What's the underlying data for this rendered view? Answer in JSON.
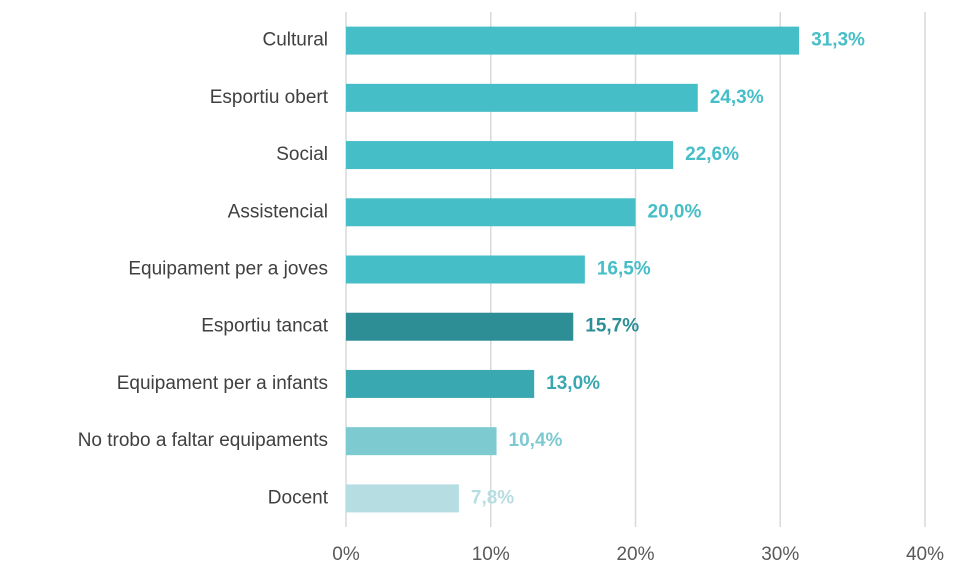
{
  "chart_data": {
    "type": "bar",
    "orientation": "horizontal",
    "categories": [
      "Cultural",
      "Esportiu obert",
      "Social",
      "Assistencial",
      "Equipament per a joves",
      "Esportiu tancat",
      "Equipament per a infants",
      "No trobo a faltar equipaments",
      "Docent"
    ],
    "values": [
      31.3,
      24.3,
      22.6,
      20.0,
      16.5,
      15.7,
      13.0,
      10.4,
      7.8
    ],
    "value_labels": [
      "31,3%",
      "24,3%",
      "22,6%",
      "20,0%",
      "16,5%",
      "15,7%",
      "13,0%",
      "10,4%",
      "7,8%"
    ],
    "colors": [
      "#45bec8",
      "#45bec8",
      "#45bec8",
      "#45bec8",
      "#45bec8",
      "#2e8e96",
      "#3aa8b1",
      "#7dcad1",
      "#b6dee2"
    ],
    "xlim": [
      0,
      40
    ],
    "xticks": [
      {
        "value": 0,
        "label": "0%"
      },
      {
        "value": 10,
        "label": "10%"
      },
      {
        "value": 20,
        "label": "20%"
      },
      {
        "value": 30,
        "label": "30%"
      },
      {
        "value": 40,
        "label": "40%"
      }
    ],
    "grid": true
  }
}
